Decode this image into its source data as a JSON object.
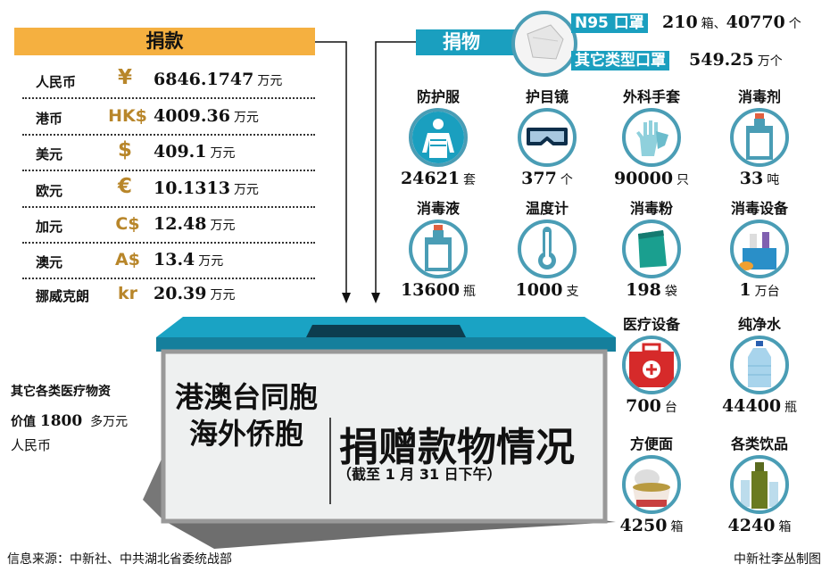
{
  "cash": {
    "title": "捐款",
    "rows": [
      {
        "label": "人民币",
        "symbol": "¥",
        "value": "6846.1747",
        "unit": "万元"
      },
      {
        "label": "港币",
        "symbol": "HK$",
        "value": "4009.36",
        "unit": "万元"
      },
      {
        "label": "美元",
        "symbol": "$",
        "value": "409.1",
        "unit": "万元"
      },
      {
        "label": "欧元",
        "symbol": "€",
        "value": "10.1313",
        "unit": "万元"
      },
      {
        "label": "加元",
        "symbol": "C$",
        "value": "12.48",
        "unit": "万元"
      },
      {
        "label": "澳元",
        "symbol": "A$",
        "value": "13.4",
        "unit": "万元"
      },
      {
        "label": "挪威克朗",
        "symbol": "kr",
        "value": "20.39",
        "unit": "万元"
      }
    ]
  },
  "goods": {
    "title": "捐物",
    "masks": [
      {
        "label": "N95 口罩",
        "value": "210",
        "unit1": "箱、",
        "value2": "40770",
        "unit2": "个"
      },
      {
        "label": "其它类型口罩",
        "value": "549.25",
        "unit": "万个"
      }
    ],
    "items": [
      {
        "title": "防护服",
        "value": "24621",
        "unit": "套",
        "icon": "protective-suit-icon"
      },
      {
        "title": "护目镜",
        "value": "377",
        "unit": "个",
        "icon": "goggles-icon"
      },
      {
        "title": "外科手套",
        "value": "90000",
        "unit": "只",
        "icon": "gloves-icon"
      },
      {
        "title": "消毒剂",
        "value": "33",
        "unit": "吨",
        "icon": "disinfectant-bottle-icon"
      },
      {
        "title": "消毒液",
        "value": "13600",
        "unit": "瓶",
        "icon": "disinfectant-liquid-icon"
      },
      {
        "title": "温度计",
        "value": "1000",
        "unit": "支",
        "icon": "thermometer-icon"
      },
      {
        "title": "消毒粉",
        "value": "198",
        "unit": "袋",
        "icon": "powder-bag-icon"
      },
      {
        "title": "消毒设备",
        "value": "1",
        "unit": "万台",
        "icon": "cleaning-equipment-icon"
      },
      {
        "title": "医疗设备",
        "value": "700",
        "unit": "台",
        "icon": "medical-kit-icon"
      },
      {
        "title": "纯净水",
        "value": "44400",
        "unit": "瓶",
        "icon": "water-bottle-icon"
      },
      {
        "title": "方便面",
        "value": "4250",
        "unit": "箱",
        "icon": "instant-noodles-icon"
      },
      {
        "title": "各类饮品",
        "value": "4240",
        "unit": "箱",
        "icon": "drinks-icon"
      }
    ]
  },
  "other": {
    "line1": "其它各类医疗物资",
    "prefix": "价值",
    "value": "1800",
    "unit": "多万元",
    "line3": "人民币"
  },
  "box": {
    "line1": "港澳台同胞",
    "line2": "海外侨胞",
    "title": "捐赠款物情况",
    "date": "（截至 1 月 31 日下午）"
  },
  "footer": {
    "source": "信息来源：中新社、中共湖北省委统战部",
    "credit": "中新社李丛制图"
  },
  "colors": {
    "orange": "#f5b040",
    "teal": "#1a9fbf",
    "gold": "#b8862a"
  }
}
